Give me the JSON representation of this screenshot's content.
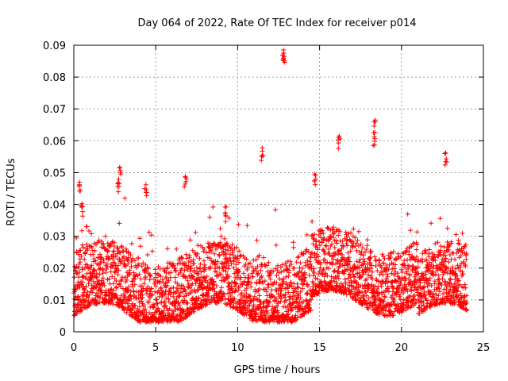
{
  "chart_data": {
    "type": "scatter",
    "title": "Day 064 of 2022, Rate Of TEC Index for receiver p014",
    "xlabel": "GPS time / hours",
    "ylabel": "ROTI / TECUs",
    "xlim": [
      0,
      25
    ],
    "ylim": [
      0,
      0.09
    ],
    "xticks": [
      0,
      5,
      10,
      15,
      20,
      25
    ],
    "xtick_labels": [
      "0",
      "5",
      "10",
      "15",
      "20",
      "25"
    ],
    "yticks": [
      0,
      0.01,
      0.02,
      0.03,
      0.04,
      0.05,
      0.06,
      0.07,
      0.08,
      0.09
    ],
    "ytick_labels": [
      "0",
      "0.01",
      "0.02",
      "0.03",
      "0.04",
      "0.05",
      "0.06",
      "0.07",
      "0.08",
      "0.09"
    ],
    "grid": true,
    "marker": "+",
    "color": "#ff0000",
    "series": [
      {
        "name": "ROTI",
        "x_range": [
          0,
          24
        ],
        "y_bulk_range": [
          0.005,
          0.025
        ],
        "notable_points": [
          {
            "x": 12.8,
            "y": 0.0885
          },
          {
            "x": 12.8,
            "y": 0.0875
          },
          {
            "x": 18.4,
            "y": 0.0665
          },
          {
            "x": 18.3,
            "y": 0.0625
          },
          {
            "x": 16.2,
            "y": 0.0615
          },
          {
            "x": 22.7,
            "y": 0.0562
          },
          {
            "x": 11.5,
            "y": 0.0578
          },
          {
            "x": 2.8,
            "y": 0.0517
          },
          {
            "x": 14.7,
            "y": 0.0495
          },
          {
            "x": 6.8,
            "y": 0.0488
          },
          {
            "x": 0.35,
            "y": 0.047
          },
          {
            "x": 4.4,
            "y": 0.0462
          },
          {
            "x": 9.3,
            "y": 0.0392
          },
          {
            "x": 0.5,
            "y": 0.0403
          },
          {
            "x": 2.7,
            "y": 0.0468
          }
        ]
      }
    ]
  }
}
